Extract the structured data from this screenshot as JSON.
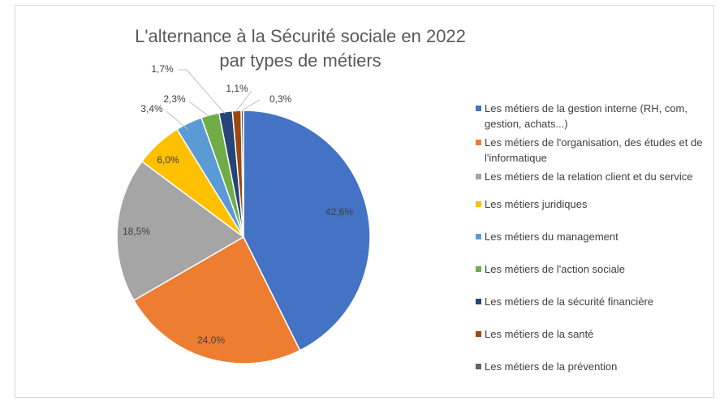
{
  "chart_data": {
    "type": "pie",
    "title_lines": [
      "L'alternance à la Sécurité sociale en 2022",
      "par types de métiers"
    ],
    "legend_position": "right",
    "slices": [
      {
        "label": "Les métiers de la gestion interne (RH, com, gestion, achats...)",
        "value": 42.6,
        "display": "42,6%",
        "color": "#4472c4"
      },
      {
        "label": "Les métiers de l'organisation, des études et de l'informatique",
        "value": 24.0,
        "display": "24,0%",
        "color": "#ed7d31"
      },
      {
        "label": "Les métiers de la relation client et du service",
        "value": 18.5,
        "display": "18,5%",
        "color": "#a5a5a5"
      },
      {
        "label": "Les métiers juridiques",
        "value": 6.0,
        "display": "6,0%",
        "color": "#ffc000"
      },
      {
        "label": "Les métiers du management",
        "value": 3.4,
        "display": "3,4%",
        "color": "#5b9bd5"
      },
      {
        "label": "Les métiers de l'action sociale",
        "value": 2.3,
        "display": "2,3%",
        "color": "#70ad47"
      },
      {
        "label": "Les métiers de la sécurité financière",
        "value": 1.7,
        "display": "1,7%",
        "color": "#264478"
      },
      {
        "label": "Les métiers de la santé",
        "value": 1.1,
        "display": "1,1%",
        "color": "#9e480e"
      },
      {
        "label": "Les métiers de la prévention",
        "value": 0.3,
        "display": "0,3%",
        "color": "#636363"
      }
    ]
  }
}
